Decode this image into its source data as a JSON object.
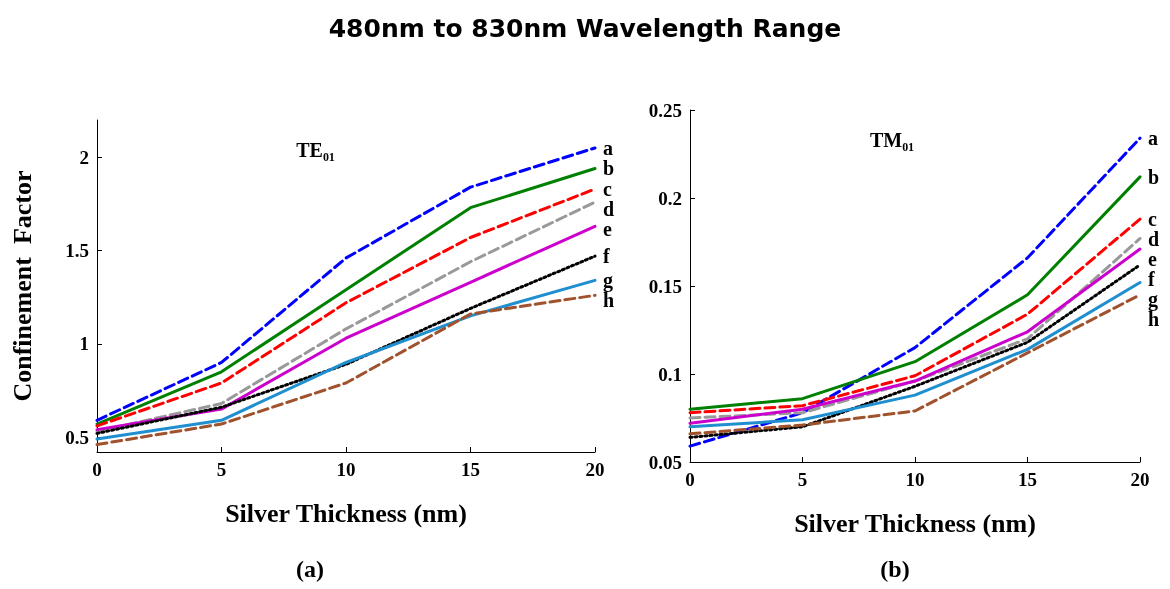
{
  "chart_data": [
    {
      "type": "line",
      "title": "480nm to 830nm Wavelength Range",
      "subtitle": "TE₀₁",
      "xlabel": "Silver Thickness (nm)",
      "ylabel": "Confinement  Factor",
      "annotations": [
        "(a)"
      ],
      "x": [
        0,
        5,
        10,
        15,
        20
      ],
      "xlim": [
        0,
        20
      ],
      "xticks": [
        0,
        5,
        10,
        15,
        20
      ],
      "ylim": [
        0.42,
        2.2
      ],
      "yticks": [
        0.5,
        1,
        1.5,
        2
      ],
      "legend": false,
      "grid": false,
      "marker": "none",
      "series": [
        {
          "name": "a",
          "color": "#0000ff",
          "line_style": "dashed",
          "values": [
            0.59,
            0.9,
            1.46,
            1.84,
            2.05
          ]
        },
        {
          "name": "b",
          "color": "#008000",
          "line_style": "solid",
          "values": [
            0.57,
            0.85,
            1.29,
            1.73,
            1.94
          ]
        },
        {
          "name": "c",
          "color": "#ff0000",
          "line_style": "dashed",
          "values": [
            0.56,
            0.79,
            1.22,
            1.57,
            1.83
          ]
        },
        {
          "name": "d",
          "color": "#999999",
          "line_style": "dashed",
          "values": [
            0.53,
            0.68,
            1.08,
            1.44,
            1.76
          ]
        },
        {
          "name": "e",
          "color": "#cc00cc",
          "line_style": "solid",
          "values": [
            0.54,
            0.65,
            1.03,
            1.33,
            1.63
          ]
        },
        {
          "name": "f",
          "color": "#000000",
          "line_style": "dotted",
          "values": [
            0.52,
            0.66,
            0.89,
            1.19,
            1.47
          ]
        },
        {
          "name": "g",
          "color": "#1f8fd0",
          "line_style": "solid",
          "values": [
            0.49,
            0.59,
            0.9,
            1.15,
            1.34
          ]
        },
        {
          "name": "h",
          "color": "#a0522d",
          "line_style": "dashed",
          "values": [
            0.46,
            0.57,
            0.79,
            1.16,
            1.26
          ]
        }
      ]
    },
    {
      "type": "line",
      "subtitle": "TM₀₁",
      "xlabel": "Silver Thickness (nm)",
      "annotations": [
        "(b)"
      ],
      "x": [
        0,
        5,
        10,
        15,
        20
      ],
      "xlim": [
        0,
        20
      ],
      "xticks": [
        0,
        5,
        10,
        15,
        20
      ],
      "ylim": [
        0.05,
        0.25
      ],
      "yticks": [
        0.05,
        0.1,
        0.15,
        0.2,
        0.25
      ],
      "legend": false,
      "grid": false,
      "marker": "none",
      "series": [
        {
          "name": "a",
          "color": "#0000ff",
          "line_style": "dashed",
          "values": [
            0.059,
            0.078,
            0.115,
            0.166,
            0.234
          ]
        },
        {
          "name": "b",
          "color": "#008000",
          "line_style": "solid",
          "values": [
            0.08,
            0.086,
            0.107,
            0.145,
            0.212
          ]
        },
        {
          "name": "c",
          "color": "#ff0000",
          "line_style": "dashed",
          "values": [
            0.078,
            0.082,
            0.099,
            0.134,
            0.188
          ]
        },
        {
          "name": "d",
          "color": "#999999",
          "line_style": "dashed",
          "values": [
            0.075,
            0.078,
            0.096,
            0.12,
            0.177
          ]
        },
        {
          "name": "e",
          "color": "#cc00cc",
          "line_style": "solid",
          "values": [
            0.072,
            0.08,
            0.096,
            0.124,
            0.171
          ]
        },
        {
          "name": "f",
          "color": "#000000",
          "line_style": "dotted",
          "values": [
            0.064,
            0.07,
            0.093,
            0.118,
            0.162
          ]
        },
        {
          "name": "g",
          "color": "#1f8fd0",
          "line_style": "solid",
          "values": [
            0.07,
            0.074,
            0.088,
            0.114,
            0.152
          ]
        },
        {
          "name": "h",
          "color": "#a0522d",
          "line_style": "dashed",
          "values": [
            0.066,
            0.071,
            0.079,
            0.112,
            0.145
          ]
        }
      ]
    }
  ]
}
